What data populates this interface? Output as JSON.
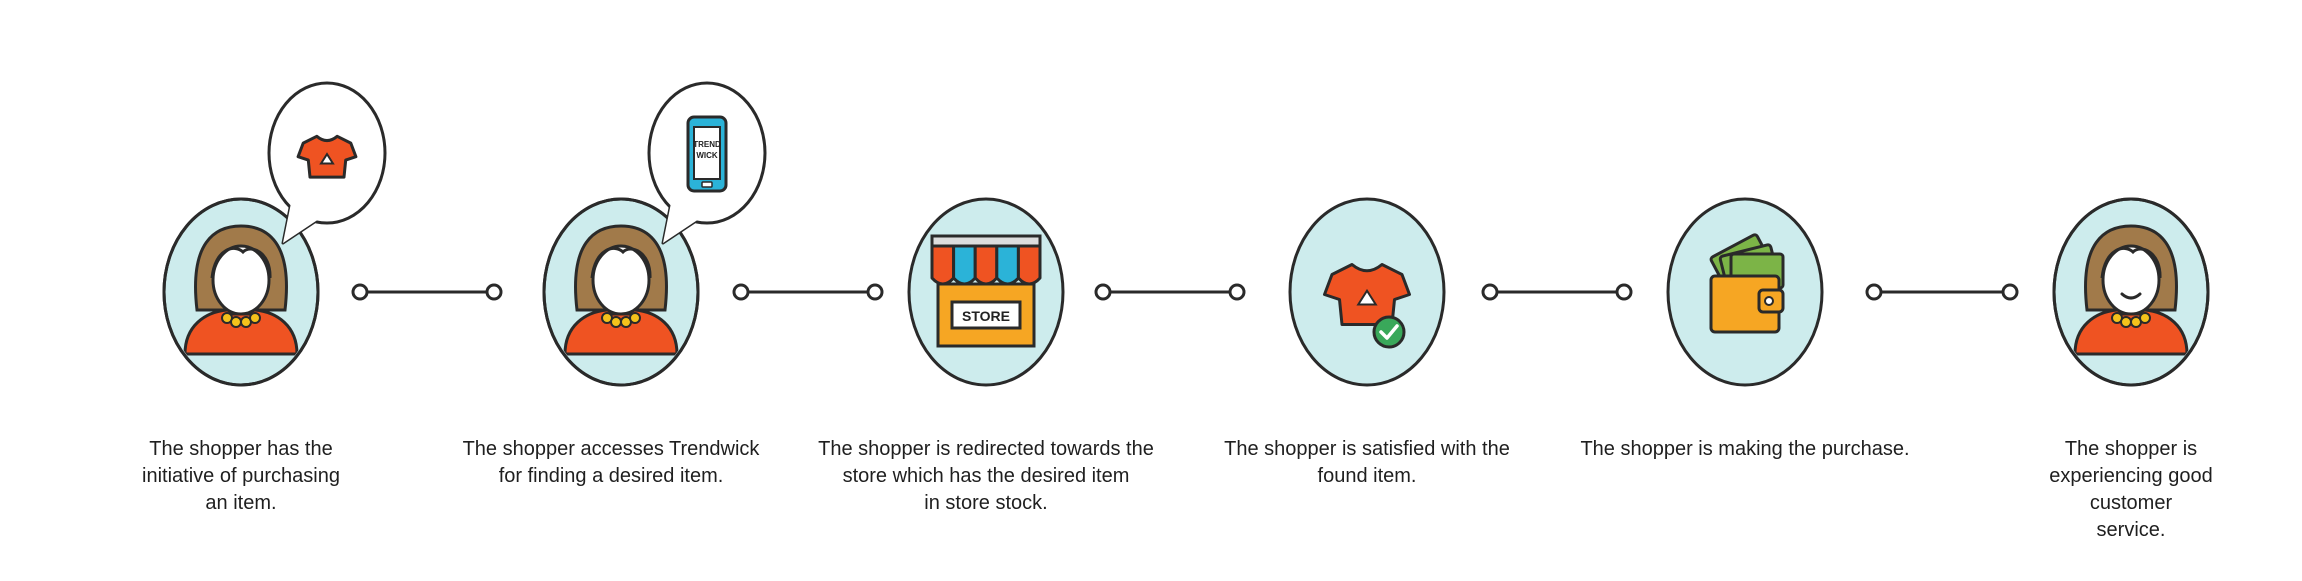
{
  "colors": {
    "circle_fill": "#cdeced",
    "outline": "#2a2a2a",
    "skin": "#ffffff",
    "hair": "#a17a4a",
    "shirt": "#ef5322",
    "necklace": "#f4c21b",
    "phone": "#2bb3d8",
    "awning_orange": "#ef5322",
    "awning_blue": "#2bb3d8",
    "store_body": "#f6a623",
    "check": "#39a85a",
    "wallet": "#f6a623",
    "money": "#7cb447",
    "connector": "#2a2a2a"
  },
  "steps": [
    {
      "icon": "shopper-icon",
      "bubble_icon": "tshirt-icon",
      "caption": [
        "The shopper has the",
        "initiative of purchasing",
        "an item."
      ]
    },
    {
      "icon": "shopper-icon",
      "bubble_icon": "phone-icon",
      "phone_text": [
        "TREND",
        "WICK"
      ],
      "caption": [
        "The shopper accesses Trendwick",
        "for finding a desired item."
      ]
    },
    {
      "icon": "store-icon",
      "store_label": "STORE",
      "caption": [
        "The shopper is redirected towards the",
        "store which has the desired item",
        "in store stock."
      ]
    },
    {
      "icon": "tshirt-check-icon",
      "caption": [
        "The shopper is satisfied with the",
        "found item."
      ]
    },
    {
      "icon": "wallet-icon",
      "caption": [
        "The shopper is making the purchase."
      ]
    },
    {
      "icon": "happy-shopper-icon",
      "caption": [
        "The shopper is",
        "experiencing good",
        "customer",
        "service."
      ]
    }
  ]
}
